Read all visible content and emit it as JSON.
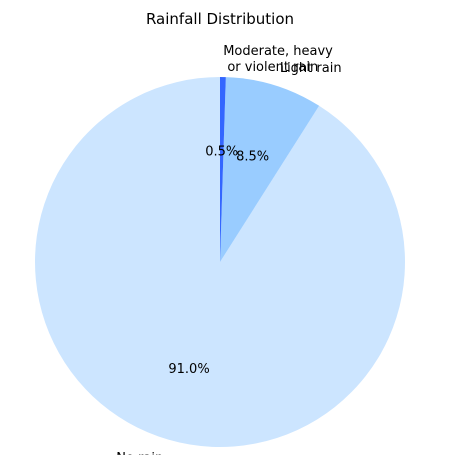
{
  "chart_data": {
    "type": "pie",
    "title": "Rainfall Distribution",
    "slices": [
      {
        "label": "No rain",
        "value": 91.0,
        "pct_label": "91.0%",
        "color": "#cce5ff"
      },
      {
        "label": "Light rain",
        "value": 8.5,
        "pct_label": "8.5%",
        "color": "#99ccff"
      },
      {
        "label": "Moderate, heavy\n or violent rain",
        "value": 0.5,
        "pct_label": "0.5%",
        "color": "#3366ff"
      }
    ],
    "start_angle_deg": 90,
    "direction": "counterclockwise",
    "legend": "none"
  }
}
